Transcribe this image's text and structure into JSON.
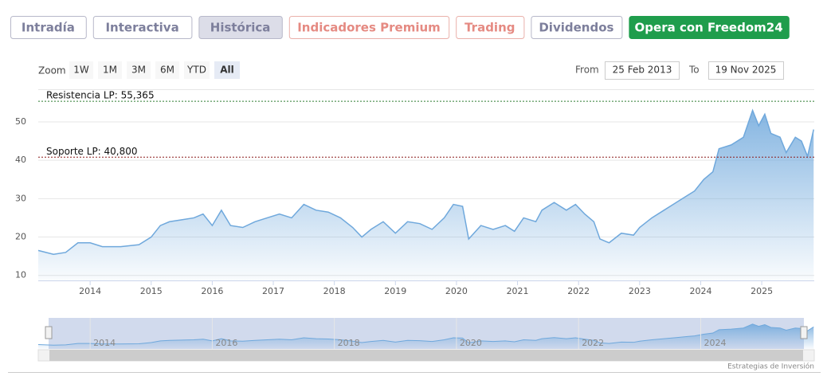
{
  "tabs": [
    {
      "label": "Intradía",
      "color": "#7d7f9c",
      "bg": "#ffffff"
    },
    {
      "label": "Interactiva",
      "color": "#7d7f9c",
      "bg": "#ffffff"
    },
    {
      "label": "Histórica",
      "color": "#7d7f9c",
      "bg": "#dcdde8"
    },
    {
      "label": "Indicadores Premium",
      "color": "#e58a82",
      "bg": "#ffffff"
    },
    {
      "label": "Trading",
      "color": "#e58a82",
      "bg": "#ffffff"
    },
    {
      "label": "Dividendos",
      "color": "#7d7f9c",
      "bg": "#ffffff"
    },
    {
      "label": "Opera con Freedom24",
      "color": "#ffffff",
      "bg": "#1f9d4c"
    }
  ],
  "zoom": {
    "label": "Zoom",
    "buttons": [
      "1W",
      "1M",
      "3M",
      "6M",
      "YTD",
      "All"
    ],
    "active": "All"
  },
  "range": {
    "from_label": "From",
    "from": "25 Feb 2013",
    "to_label": "To",
    "to": "19 Nov 2025"
  },
  "credit": "Estrategias de Inversión",
  "chart_data": {
    "type": "area",
    "x": [
      2013.15,
      2013.4,
      2013.6,
      2013.8,
      2014.0,
      2014.2,
      2014.5,
      2014.8,
      2015.0,
      2015.15,
      2015.3,
      2015.5,
      2015.7,
      2015.85,
      2016.0,
      2016.15,
      2016.3,
      2016.5,
      2016.7,
      2016.9,
      2017.1,
      2017.3,
      2017.5,
      2017.7,
      2017.9,
      2018.1,
      2018.3,
      2018.45,
      2018.6,
      2018.8,
      2019.0,
      2019.2,
      2019.4,
      2019.6,
      2019.8,
      2019.95,
      2020.1,
      2020.2,
      2020.4,
      2020.6,
      2020.8,
      2020.95,
      2021.1,
      2021.3,
      2021.4,
      2021.6,
      2021.8,
      2021.95,
      2022.1,
      2022.25,
      2022.35,
      2022.5,
      2022.7,
      2022.9,
      2023.0,
      2023.2,
      2023.4,
      2023.6,
      2023.8,
      2023.9,
      2024.05,
      2024.2,
      2024.3,
      2024.5,
      2024.7,
      2024.85,
      2024.95,
      2025.05,
      2025.15,
      2025.3,
      2025.4,
      2025.55,
      2025.65,
      2025.75,
      2025.85
    ],
    "series": [
      {
        "color": "#6fa8dc",
        "values": [
          16.5,
          15.5,
          16,
          18.5,
          18.5,
          17.5,
          17.5,
          18,
          20,
          23,
          24,
          24.5,
          25,
          26,
          23,
          27,
          23,
          22.5,
          24,
          25,
          26,
          25,
          28.5,
          27,
          26.5,
          25,
          22.5,
          20,
          22,
          24,
          21,
          24,
          23.5,
          22,
          25,
          28.5,
          28,
          19.5,
          23,
          22,
          23,
          21.5,
          25,
          24,
          27,
          29,
          27,
          28.5,
          26,
          24,
          19.5,
          18.5,
          21,
          20.5,
          22.5,
          25,
          27,
          29,
          31,
          32,
          35,
          37,
          43,
          44,
          46,
          53,
          49,
          52,
          47,
          46,
          42,
          46,
          45,
          41,
          48
        ]
      }
    ],
    "xlim": [
      2013.15,
      2025.86
    ],
    "xticks": [
      2014,
      2015,
      2016,
      2017,
      2018,
      2019,
      2020,
      2021,
      2022,
      2023,
      2024,
      2025
    ],
    "ylim": [
      8.7,
      58.5
    ],
    "yticks": [
      10,
      20,
      30,
      40,
      50
    ],
    "grid": true,
    "annotations": [
      {
        "label": "Resistencia LP: 55,365",
        "value": 55.365,
        "color": "#2e7d32"
      },
      {
        "label": "Soporte LP: 40,800",
        "value": 40.8,
        "color": "#8b1a1a"
      }
    ]
  }
}
